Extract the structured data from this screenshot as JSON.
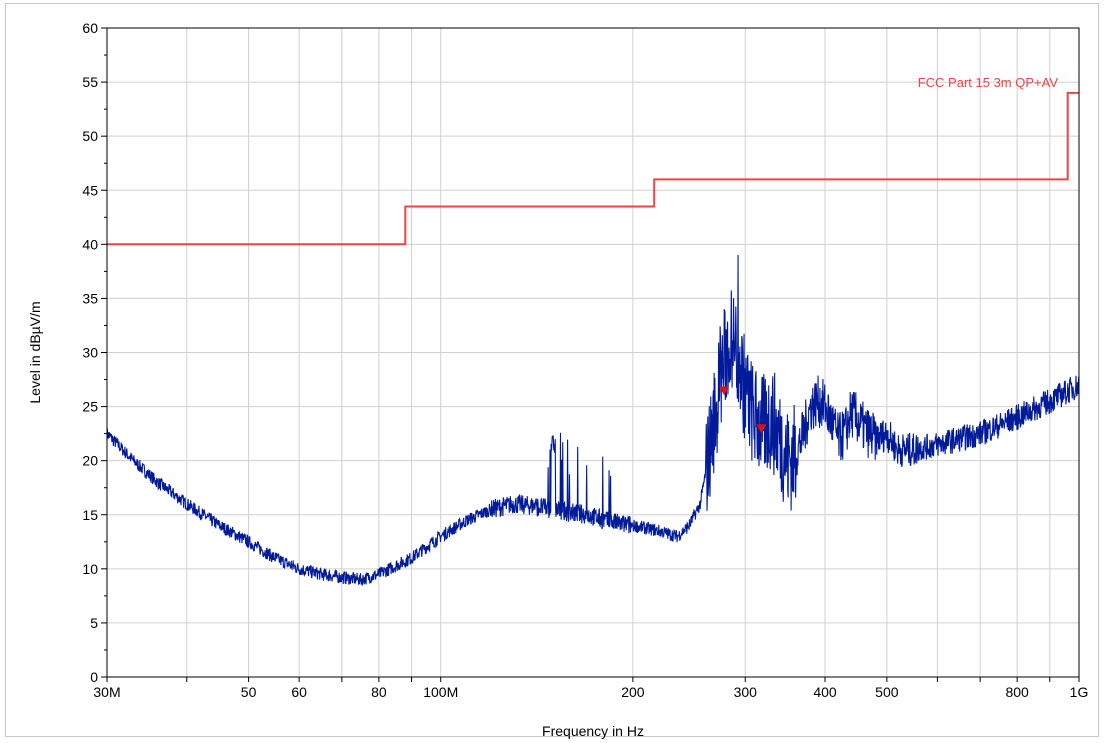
{
  "chart_data": {
    "type": "line",
    "title": "",
    "xlabel": "Frequency in Hz",
    "ylabel": "Level in dBµV/m",
    "x_scale": "log",
    "xlim": [
      30000000,
      1000000000
    ],
    "ylim": [
      0,
      60
    ],
    "grid": true,
    "x_ticks": [
      {
        "value": 30000000,
        "label": "30M"
      },
      {
        "value": 50000000,
        "label": "50"
      },
      {
        "value": 60000000,
        "label": "60"
      },
      {
        "value": 80000000,
        "label": "80"
      },
      {
        "value": 100000000,
        "label": "100M"
      },
      {
        "value": 200000000,
        "label": "200"
      },
      {
        "value": 300000000,
        "label": "300"
      },
      {
        "value": 400000000,
        "label": "400"
      },
      {
        "value": 500000000,
        "label": "500"
      },
      {
        "value": 800000000,
        "label": "800"
      },
      {
        "value": 1000000000,
        "label": "1G"
      }
    ],
    "y_ticks": [
      {
        "value": 0,
        "label": "0"
      },
      {
        "value": 5,
        "label": "5"
      },
      {
        "value": 10,
        "label": "10"
      },
      {
        "value": 15,
        "label": "15"
      },
      {
        "value": 20,
        "label": "20"
      },
      {
        "value": 25,
        "label": "25"
      },
      {
        "value": 30,
        "label": "30"
      },
      {
        "value": 35,
        "label": "35"
      },
      {
        "value": 40,
        "label": "40"
      },
      {
        "value": 45,
        "label": "45"
      },
      {
        "value": 50,
        "label": "50"
      },
      {
        "value": 55,
        "label": "55"
      },
      {
        "value": 60,
        "label": "60"
      }
    ],
    "limit_line": {
      "name": "FCC Part 15  3m QP+AV",
      "color": "#ee4444",
      "segments": [
        {
          "x_start": 30000000,
          "x_end": 88000000,
          "y": 40.0
        },
        {
          "x_start": 88000000,
          "x_end": 216000000,
          "y": 43.5
        },
        {
          "x_start": 216000000,
          "x_end": 960000000,
          "y": 46.0
        },
        {
          "x_start": 960000000,
          "x_end": 1000000000,
          "y": 54.0
        }
      ]
    },
    "series": [
      {
        "color": "#001a99",
        "x": [
          30000000,
          33000000,
          36000000,
          40000000,
          45000000,
          50000000,
          55000000,
          60000000,
          65000000,
          70000000,
          75000000,
          80000000,
          90000000,
          100000000,
          110000000,
          120000000,
          130000000,
          140000000,
          150000000,
          160000000,
          170000000,
          180000000,
          190000000,
          200000000,
          220000000,
          235000000,
          245000000,
          255000000,
          262000000,
          270000000,
          275000000,
          280000000,
          285000000,
          290000000,
          295000000,
          300000000,
          305000000,
          310000000,
          320000000,
          330000000,
          340000000,
          350000000,
          360000000,
          370000000,
          380000000,
          390000000,
          400000000,
          410000000,
          420000000,
          430000000,
          440000000,
          460000000,
          480000000,
          500000000,
          520000000,
          550000000,
          600000000,
          700000000,
          800000000,
          900000000,
          1000000000
        ],
        "y": [
          22.5,
          20.0,
          18.0,
          16.0,
          14.0,
          12.5,
          11.0,
          10.0,
          9.5,
          9.2,
          9.0,
          9.5,
          11.0,
          13.0,
          14.5,
          15.5,
          16.0,
          15.8,
          15.5,
          15.2,
          15.0,
          14.5,
          14.2,
          14.0,
          13.5,
          13.0,
          14.0,
          16.0,
          20.0,
          25.0,
          28.0,
          30.0,
          31.0,
          30.5,
          28.5,
          26.5,
          25.0,
          24.0,
          23.0,
          24.0,
          22.0,
          20.0,
          20.5,
          22.5,
          25.0,
          25.5,
          25.0,
          23.5,
          22.0,
          22.5,
          24.5,
          23.0,
          22.0,
          22.5,
          21.0,
          21.0,
          21.5,
          22.5,
          24.0,
          25.5,
          27.0
        ]
      }
    ],
    "markers": {
      "color": "#dd1111",
      "points": [
        {
          "x": 278000000,
          "y": 26.5
        },
        {
          "x": 318000000,
          "y": 23.0
        }
      ]
    }
  }
}
